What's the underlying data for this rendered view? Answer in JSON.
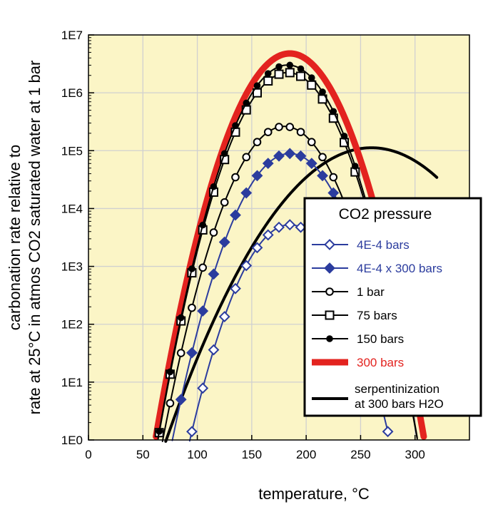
{
  "chart_data": {
    "type": "line",
    "xlabel": "temperature, °C",
    "ylabel_lines": [
      "carbonation rate relative to",
      "rate at 25°C in atmos CO2 saturated water at 1 bar"
    ],
    "xlim": [
      0,
      350
    ],
    "ylim": [
      1,
      10000000
    ],
    "y_scale": "log",
    "x_ticks": [
      0,
      50,
      100,
      150,
      200,
      250,
      300
    ],
    "y_ticks": [
      1,
      10,
      100,
      1000,
      10000,
      100000,
      1000000,
      10000000
    ],
    "x_tick_labels": [
      "0",
      "50",
      "100",
      "150",
      "200",
      "250",
      "300"
    ],
    "y_tick_labels": [
      "1E0",
      "1E1",
      "1E2",
      "1E3",
      "1E4",
      "1E5",
      "1E6",
      "1E7"
    ],
    "grid": true,
    "plot_background": "#fbf5c6",
    "legend_position": "lower-right",
    "legend_title": "CO2 pressure",
    "series": [
      {
        "name": "4E-4 bars",
        "color": "#2b3c9e",
        "marker": "diamond-open",
        "line_width": 2,
        "x_min": 25,
        "x_max": 275,
        "peak_t": 185,
        "peak_log": 3.72,
        "sigma": 47.6
      },
      {
        "name": "4E-4 x 300 bars",
        "color": "#2b3c9e",
        "marker": "diamond-filled",
        "line_width": 2,
        "x_min": 25,
        "x_max": 275,
        "peak_t": 185,
        "peak_log": 4.95,
        "sigma": 48.5
      },
      {
        "name": "1 bar",
        "color": "#000000",
        "marker": "circle-open",
        "line_width": 2,
        "x_min": 25,
        "x_max": 280,
        "peak_t": 180,
        "peak_log": 5.42,
        "sigma": 48.0
      },
      {
        "name": "75 bars",
        "color": "#000000",
        "marker": "square-open",
        "line_width": 2,
        "x_min": 25,
        "x_max": 315,
        "peak_t": 183,
        "peak_log": 6.35,
        "sigma": 47.3
      },
      {
        "name": "150 bars",
        "color": "#000000",
        "marker": "circle-filled",
        "line_width": 2,
        "x_min": 25,
        "x_max": 315,
        "peak_t": 183,
        "peak_log": 6.48,
        "sigma": 46.9
      },
      {
        "name": "300 bars",
        "color": "#e3231f",
        "marker": "none",
        "line_width": 9,
        "x_min": 25,
        "x_max": 318,
        "peak_t": 185,
        "peak_log": 6.68,
        "sigma": 47.8
      },
      {
        "name_lines": [
          "serpentinization",
          "at 300 bars H2O"
        ],
        "color": "#000000",
        "marker": "none",
        "line_width": 4,
        "x_min": 25,
        "x_max": 320,
        "peak_t": 260,
        "peak_log": 5.05,
        "sigma": 83.9
      }
    ]
  }
}
